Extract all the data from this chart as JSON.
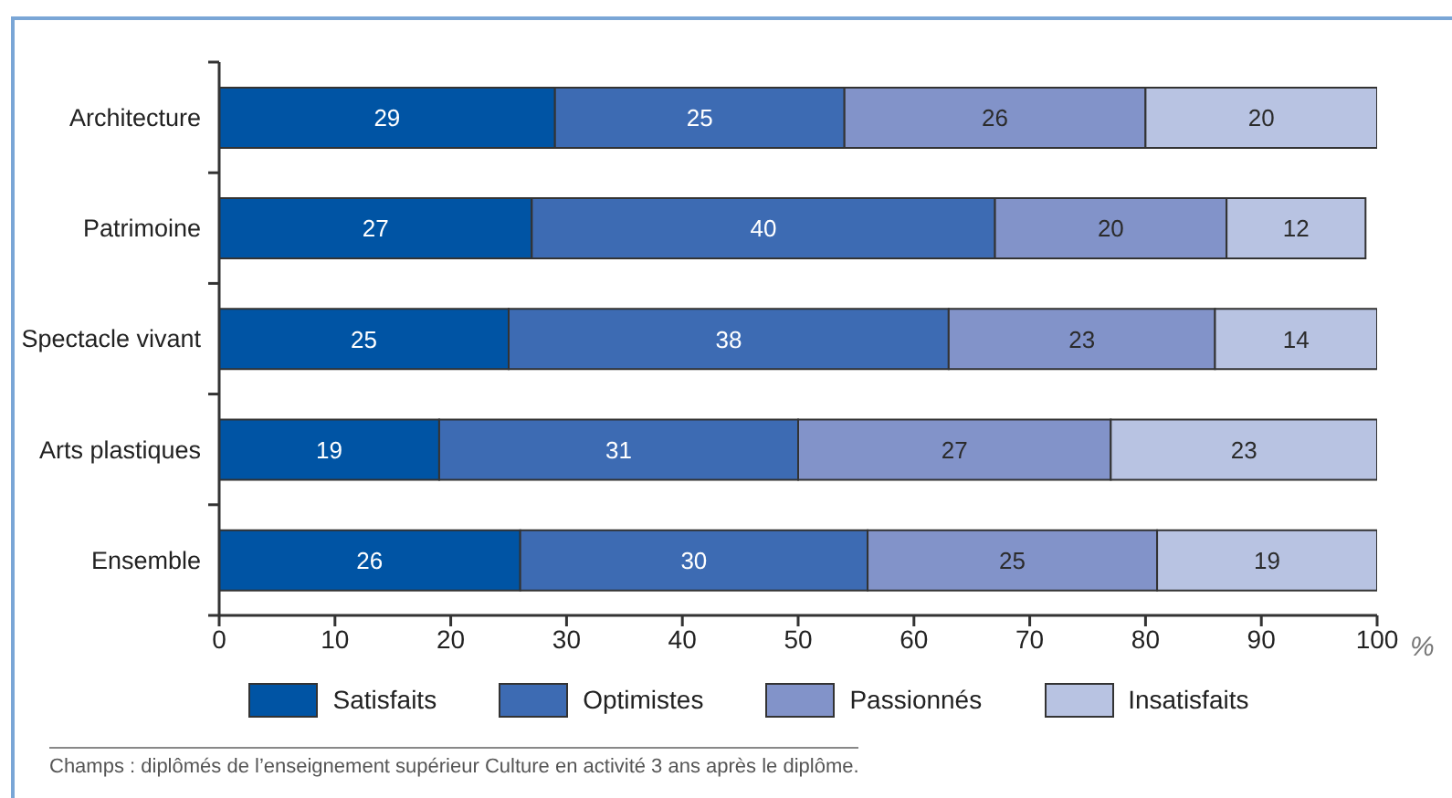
{
  "chart_data": {
    "type": "bar",
    "orientation": "horizontal",
    "stacked": true,
    "categories": [
      "Architecture",
      "Patrimoine",
      "Spectacle vivant",
      "Arts plastiques",
      "Ensemble"
    ],
    "series": [
      {
        "name": "Satisfaits",
        "color": "#0054a4",
        "values": [
          29,
          27,
          25,
          19,
          26
        ]
      },
      {
        "name": "Optimistes",
        "color": "#3d6bb3",
        "values": [
          25,
          40,
          38,
          31,
          30
        ]
      },
      {
        "name": "Passionnés",
        "color": "#8293c9",
        "values": [
          26,
          20,
          23,
          27,
          25
        ]
      },
      {
        "name": "Insatisfaits",
        "color": "#b8c3e2",
        "values": [
          20,
          12,
          14,
          23,
          19
        ]
      }
    ],
    "xlabel": "%",
    "xlim": [
      0,
      100
    ],
    "xticks": [
      0,
      10,
      20,
      30,
      40,
      50,
      60,
      70,
      80,
      90,
      100
    ],
    "data_labels": true,
    "legend": "bottom",
    "annotations": [
      "Champs : diplômés de l’enseignement supérieur Culture en activité 3 ans après le diplôme."
    ]
  }
}
